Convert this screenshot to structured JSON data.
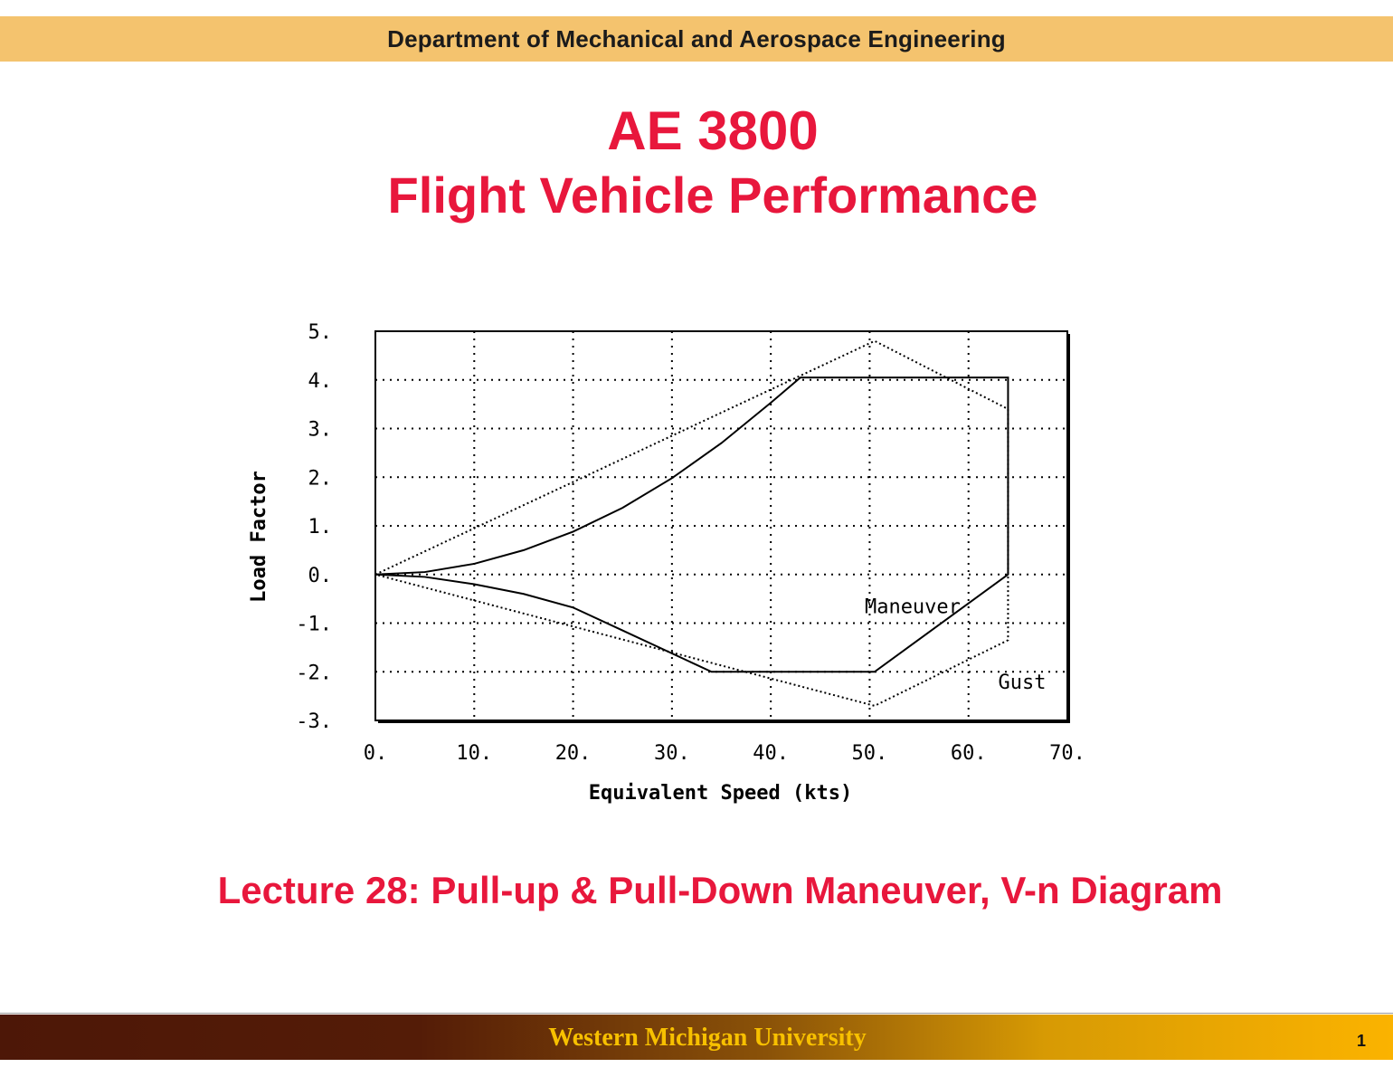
{
  "header": {
    "department": "Department of Mechanical and Aerospace Engineering"
  },
  "title": {
    "line1": "AE 3800",
    "line2": "Flight Vehicle Performance"
  },
  "lecture": "Lecture 28: Pull-up & Pull-Down Maneuver, V-n Diagram",
  "footer": {
    "university": "Western Michigan University",
    "page": "1"
  },
  "colors": {
    "title_red": "#e8173c",
    "top_band": "#f4c36e",
    "footer_gold": "#f7c000",
    "footer_dark": "#4d1707"
  },
  "chart_data": {
    "type": "line",
    "title": "",
    "xlabel": "Equivalent Speed (kts)",
    "ylabel": "Load Factor",
    "xlim": [
      0,
      70
    ],
    "ylim": [
      -3,
      5
    ],
    "xticks": [
      0,
      10,
      20,
      30,
      40,
      50,
      60,
      70
    ],
    "xtick_labels": [
      "0.",
      "10.",
      "20.",
      "30.",
      "40.",
      "50.",
      "60.",
      "70."
    ],
    "yticks": [
      5,
      4,
      3,
      2,
      1,
      0,
      -1,
      -2,
      -3
    ],
    "ytick_labels": [
      "5.",
      "4.",
      "3.",
      "2.",
      "1.",
      "0.",
      "-1.",
      "-2.",
      "-3."
    ],
    "grid": true,
    "series": [
      {
        "name": "Maneuver",
        "style": "solid",
        "x": [
          0,
          5,
          10,
          15,
          20,
          25,
          30,
          35,
          40,
          43,
          64,
          64,
          50.5,
          34,
          25,
          20,
          15,
          10,
          5,
          0
        ],
        "y": [
          0,
          0.05,
          0.22,
          0.5,
          0.88,
          1.37,
          1.98,
          2.7,
          3.53,
          4.05,
          4.05,
          0,
          -2,
          -2,
          -1.15,
          -0.68,
          -0.4,
          -0.2,
          -0.05,
          0
        ]
      },
      {
        "name": "Gust",
        "style": "dotted",
        "x": [
          0,
          50.5,
          64,
          64,
          50.5,
          0
        ],
        "y": [
          0,
          4.8,
          3.4,
          -1.35,
          -2.7,
          0
        ]
      }
    ],
    "annotations": [
      {
        "text": "Maneuver",
        "x": 49.5,
        "y": -0.65
      },
      {
        "text": "Gust",
        "x": 63,
        "y": -2.2
      }
    ]
  }
}
